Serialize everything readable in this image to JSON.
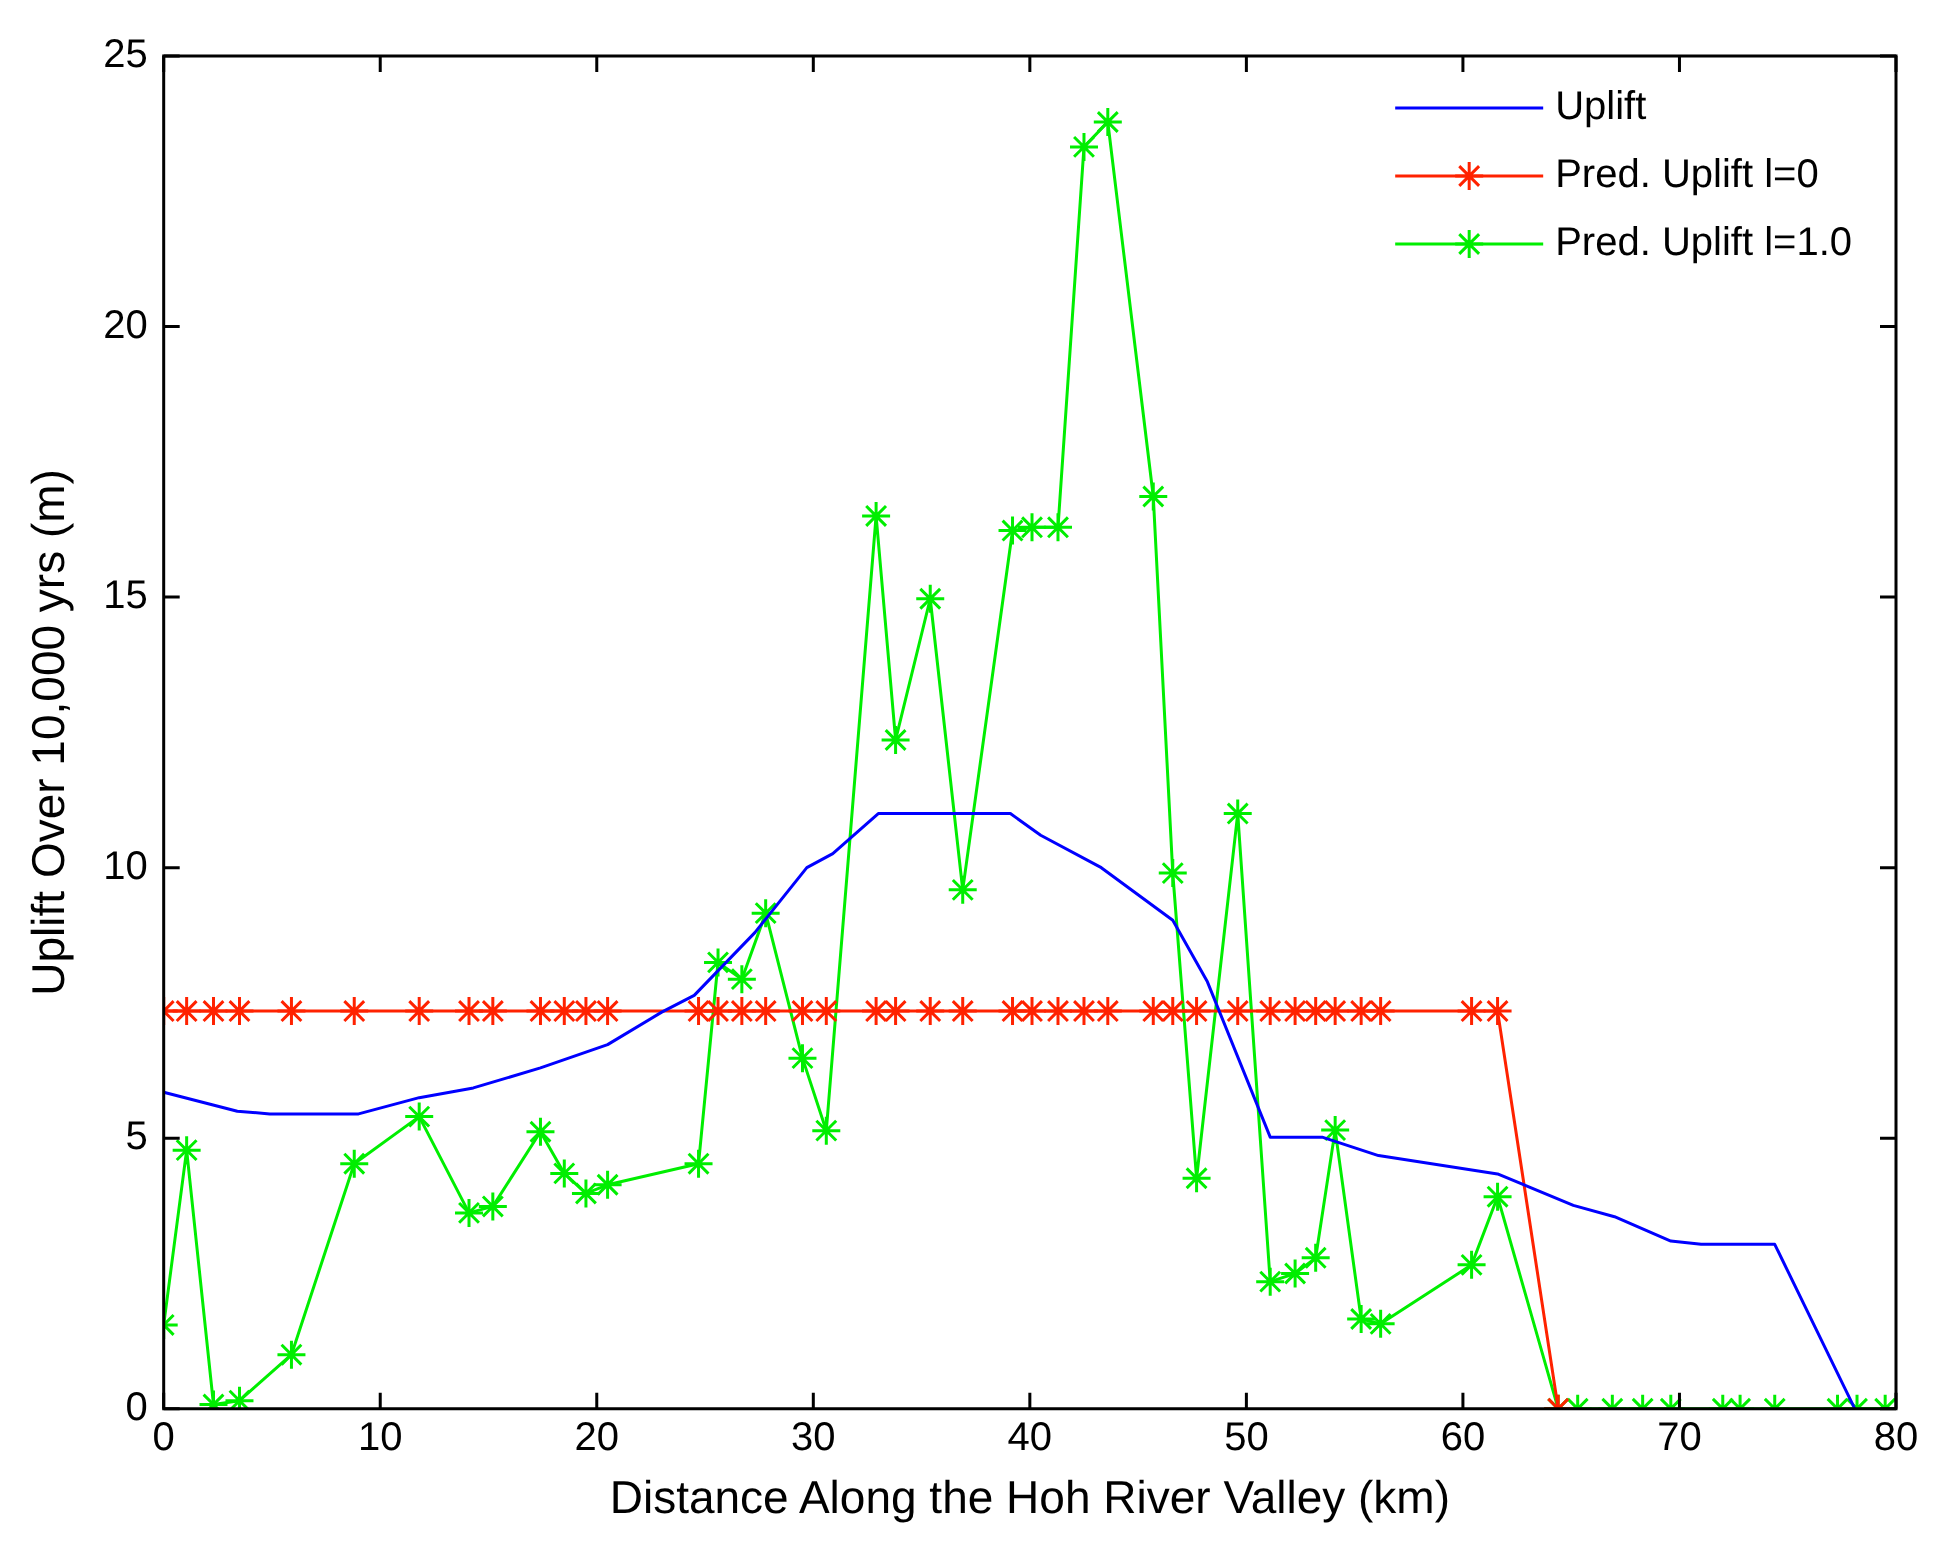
{
  "chart_data": {
    "type": "line",
    "xlabel": "Distance Along the Hoh River Valley (km)",
    "ylabel": "Uplift Over 10,000 yrs (m)",
    "xlim": [
      0,
      80
    ],
    "xticks": [
      0,
      10,
      20,
      30,
      40,
      50,
      60,
      70,
      80
    ],
    "ylim": [
      0,
      25
    ],
    "yticks": [
      0,
      5,
      10,
      15,
      20,
      25
    ],
    "grid": false,
    "legend": "top right",
    "line_style": "solid",
    "series": [
      {
        "name": "Uplift",
        "color": "#0000ff",
        "marker": "none",
        "x": [
          0,
          3.4,
          4.9,
          9.0,
          11.8,
          14.3,
          17.4,
          20.5,
          23.0,
          24.5,
          27.3,
          29.7,
          30.9,
          33.0,
          39.1,
          40.5,
          43.3,
          46.6,
          48.2,
          51.1,
          53.5,
          56.1,
          61.6,
          65.1,
          67.0,
          69.6,
          71.0,
          74.4,
          78.1
        ],
        "values": [
          5.85,
          5.5,
          5.45,
          5.45,
          5.75,
          5.93,
          6.3,
          6.73,
          7.33,
          7.64,
          8.8,
          10.0,
          10.26,
          11.0,
          11.0,
          10.6,
          10.0,
          9.03,
          7.89,
          5.02,
          5.02,
          4.68,
          4.34,
          3.76,
          3.55,
          3.1,
          3.04,
          3.04,
          0
        ]
      },
      {
        "name": "Pred. Uplift l=0",
        "color": "#ff2200",
        "marker": "cross",
        "x": [
          0,
          1.06,
          2.3,
          3.5,
          5.9,
          8.8,
          11.8,
          14.1,
          15.2,
          17.4,
          18.5,
          19.5,
          20.5,
          24.7,
          25.6,
          26.7,
          27.8,
          29.5,
          30.6,
          32.9,
          33.8,
          35.4,
          36.9,
          39.2,
          40.1,
          41.3,
          42.5,
          43.6,
          45.7,
          46.6,
          47.7,
          49.6,
          51.1,
          52.25,
          53.2,
          54.1,
          55.3,
          56.2,
          60.4,
          61.6,
          64.4
        ],
        "values": [
          7.35,
          7.35,
          7.35,
          7.35,
          7.35,
          7.35,
          7.35,
          7.35,
          7.35,
          7.35,
          7.35,
          7.35,
          7.35,
          7.35,
          7.35,
          7.35,
          7.35,
          7.35,
          7.35,
          7.35,
          7.35,
          7.35,
          7.35,
          7.35,
          7.35,
          7.35,
          7.35,
          7.35,
          7.35,
          7.35,
          7.35,
          7.35,
          7.35,
          7.35,
          7.35,
          7.35,
          7.35,
          7.35,
          7.35,
          7.35,
          0
        ]
      },
      {
        "name": "Pred. Uplift l=1.0",
        "color": "#00ee00",
        "marker": "cross",
        "x": [
          0,
          1.06,
          2.3,
          3.5,
          5.9,
          8.8,
          11.8,
          14.1,
          15.2,
          17.4,
          18.5,
          19.5,
          20.5,
          24.7,
          25.6,
          26.7,
          27.8,
          29.5,
          30.6,
          32.9,
          33.8,
          35.4,
          36.9,
          39.2,
          40.1,
          41.3,
          42.5,
          43.6,
          45.7,
          46.6,
          47.7,
          49.6,
          51.1,
          52.25,
          53.2,
          54.1,
          55.3,
          56.2,
          60.4,
          61.6,
          64.4,
          65.3,
          66.9,
          68.3,
          69.6,
          72.0,
          72.8,
          74.4,
          77.3,
          78.2,
          79.5
        ],
        "values": [
          1.55,
          4.78,
          0.08,
          0.15,
          1.0,
          4.53,
          5.4,
          3.62,
          3.74,
          5.12,
          4.35,
          3.98,
          4.14,
          4.53,
          8.25,
          7.94,
          9.16,
          6.48,
          5.14,
          16.5,
          12.36,
          14.97,
          9.59,
          16.23,
          16.29,
          16.29,
          23.32,
          23.78,
          16.86,
          9.9,
          4.26,
          11.0,
          2.35,
          2.5,
          2.79,
          5.15,
          1.66,
          1.57,
          2.66,
          3.92,
          0,
          0,
          0,
          0,
          0,
          0,
          0,
          0,
          0,
          0,
          0
        ]
      }
    ]
  }
}
